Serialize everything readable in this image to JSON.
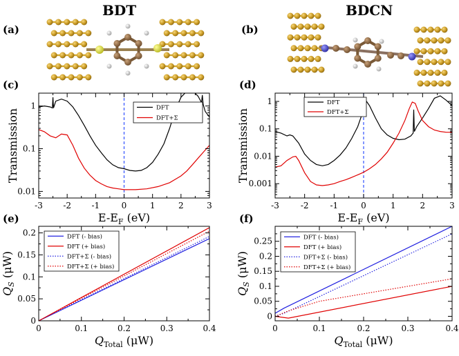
{
  "figure": {
    "panels": [
      {
        "label": "(a)",
        "title": "BDT",
        "type": "image"
      },
      {
        "label": "(b)",
        "title": "BDCN",
        "type": "image"
      }
    ]
  },
  "chart_data": [
    {
      "id": "c",
      "label": "(c)",
      "type": "line",
      "yscale": "log",
      "xlabel": "E-E",
      "xlabel_sub": "F",
      "xlabel_unit": " (eV)",
      "ylabel": "Transmission",
      "xlim": [
        -3,
        3
      ],
      "ylim": [
        0.007,
        2
      ],
      "xticks": [
        -3,
        -2,
        -1,
        0,
        1,
        2,
        3
      ],
      "yticks": [
        0.01,
        0.1,
        1
      ],
      "ytick_labels": [
        "0.01",
        "0.1",
        "1"
      ],
      "vline": 0,
      "legend": "top-right",
      "series": [
        {
          "name": "DFT",
          "color": "#000000",
          "x": [
            -3,
            -2.8,
            -2.6,
            -2.52,
            -2.5,
            -2.48,
            -2.4,
            -2.2,
            -2.0,
            -1.8,
            -1.6,
            -1.4,
            -1.2,
            -1.0,
            -0.8,
            -0.6,
            -0.4,
            -0.2,
            0,
            0.2,
            0.4,
            0.6,
            0.8,
            1.0,
            1.2,
            1.4,
            1.6,
            1.8,
            2.0,
            2.2,
            2.4,
            2.6,
            2.72,
            2.75,
            2.78,
            2.85,
            3.0
          ],
          "y": [
            0.95,
            1.0,
            0.95,
            0.9,
            1.6,
            0.9,
            1.3,
            1.45,
            1.3,
            0.95,
            0.6,
            0.35,
            0.2,
            0.12,
            0.08,
            0.055,
            0.042,
            0.036,
            0.034,
            0.031,
            0.03,
            0.031,
            0.036,
            0.048,
            0.075,
            0.13,
            0.3,
            0.8,
            1.6,
            2.2,
            2.3,
            1.7,
            1.2,
            1.8,
            1.1,
            0.75,
            0.55
          ]
        },
        {
          "name": "DFT+Σ",
          "color": "#e00000",
          "x": [
            -3,
            -2.8,
            -2.6,
            -2.4,
            -2.2,
            -2.0,
            -1.8,
            -1.6,
            -1.4,
            -1.2,
            -1.0,
            -0.8,
            -0.6,
            -0.4,
            -0.2,
            0,
            0.4,
            0.8,
            1.2,
            1.6,
            2.0,
            2.2,
            2.4,
            2.6,
            2.8,
            3.0
          ],
          "y": [
            0.28,
            0.25,
            0.2,
            0.18,
            0.22,
            0.21,
            0.12,
            0.06,
            0.035,
            0.024,
            0.018,
            0.015,
            0.013,
            0.012,
            0.0115,
            0.011,
            0.011,
            0.0115,
            0.013,
            0.016,
            0.023,
            0.03,
            0.042,
            0.06,
            0.085,
            0.12
          ]
        }
      ]
    },
    {
      "id": "d",
      "label": "(d)",
      "type": "line",
      "yscale": "log",
      "xlabel": "E-E",
      "xlabel_sub": "F",
      "xlabel_unit": " (eV)",
      "ylabel": "Transmission",
      "xlim": [
        -3,
        3
      ],
      "ylim": [
        0.0003,
        2
      ],
      "xticks": [
        -3,
        -2,
        -1,
        0,
        1,
        2,
        3
      ],
      "yticks": [
        0.001,
        0.01,
        0.1,
        1
      ],
      "ytick_labels": [
        "0.001",
        "0.01",
        "0.1",
        "1"
      ],
      "vline": 0,
      "legend": "top-left",
      "series": [
        {
          "name": "DFT",
          "color": "#000000",
          "x": [
            -3,
            -2.8,
            -2.6,
            -2.5,
            -2.4,
            -2.2,
            -2.0,
            -1.8,
            -1.6,
            -1.4,
            -1.2,
            -1.0,
            -0.8,
            -0.6,
            -0.4,
            -0.2,
            0,
            0.1,
            0.2,
            0.4,
            0.6,
            0.8,
            1.0,
            1.2,
            1.4,
            1.6,
            1.68,
            1.7,
            1.72,
            1.8,
            2.0,
            2.2,
            2.4,
            2.6,
            2.8,
            3.0
          ],
          "y": [
            0.08,
            0.07,
            0.055,
            0.06,
            0.055,
            0.03,
            0.012,
            0.007,
            0.005,
            0.0045,
            0.005,
            0.007,
            0.011,
            0.02,
            0.045,
            0.12,
            0.5,
            1.0,
            0.7,
            0.25,
            0.1,
            0.06,
            0.045,
            0.04,
            0.042,
            0.055,
            0.07,
            0.5,
            0.08,
            0.12,
            0.25,
            0.55,
            1.3,
            1.6,
            1.1,
            0.7
          ]
        },
        {
          "name": "DFT+Σ",
          "color": "#e00000",
          "x": [
            -3,
            -2.8,
            -2.6,
            -2.4,
            -2.3,
            -2.2,
            -2.0,
            -1.8,
            -1.6,
            -1.4,
            -1.2,
            -1.0,
            -0.8,
            -0.6,
            -0.4,
            -0.2,
            0,
            0.2,
            0.4,
            0.6,
            0.8,
            1.0,
            1.2,
            1.4,
            1.55,
            1.65,
            1.75,
            1.85,
            2.0,
            2.2,
            2.4,
            2.6,
            2.8,
            3.0
          ],
          "y": [
            0.004,
            0.0045,
            0.007,
            0.0095,
            0.01,
            0.007,
            0.0025,
            0.0012,
            0.0009,
            0.00085,
            0.0009,
            0.001,
            0.0012,
            0.0014,
            0.0017,
            0.0021,
            0.0026,
            0.0035,
            0.005,
            0.008,
            0.014,
            0.03,
            0.07,
            0.2,
            0.55,
            0.95,
            0.85,
            0.45,
            0.2,
            0.12,
            0.09,
            0.08,
            0.075,
            0.075
          ]
        }
      ]
    },
    {
      "id": "e",
      "label": "(e)",
      "type": "line",
      "yscale": "linear",
      "xlabel": "Q",
      "xlabel_sub": "Total",
      "xlabel_unit": " (μW)",
      "ylabel": "Q",
      "ylabel_sub": "S",
      "ylabel_unit": " (μW)",
      "xlim": [
        0,
        0.4
      ],
      "ylim": [
        0,
        0.215
      ],
      "xticks": [
        0,
        0.1,
        0.2,
        0.3,
        0.4
      ],
      "xtick_labels": [
        "0",
        "0.1",
        "0.2",
        "0.3",
        "0.4"
      ],
      "yticks": [
        0,
        0.05,
        0.1,
        0.15,
        0.2
      ],
      "ytick_labels": [
        "0",
        "0.05",
        "0.1",
        "0.15",
        "0.2"
      ],
      "legend": "top-left",
      "series": [
        {
          "name": "DFT (- bias)",
          "color": "#2020e0",
          "dash": "solid",
          "x": [
            0,
            0.4
          ],
          "y": [
            0,
            0.187
          ]
        },
        {
          "name": "DFT (+ bias)",
          "color": "#e00000",
          "dash": "solid",
          "x": [
            0,
            0.4
          ],
          "y": [
            0,
            0.212
          ]
        },
        {
          "name": "DFT+Σ (- bias)",
          "color": "#2020e0",
          "dash": "dotted",
          "x": [
            0,
            0.4
          ],
          "y": [
            0,
            0.192
          ]
        },
        {
          "name": "DFT+Σ (+ bias)",
          "color": "#e00000",
          "dash": "dotted",
          "x": [
            0,
            0.4
          ],
          "y": [
            0,
            0.204
          ]
        }
      ]
    },
    {
      "id": "f",
      "label": "(f)",
      "type": "line",
      "yscale": "linear",
      "xlabel": "Q",
      "xlabel_sub": "Total",
      "xlabel_unit": " (μW)",
      "ylabel": "Q",
      "ylabel_sub": "S",
      "ylabel_unit": " (μW)",
      "xlim": [
        0,
        0.4
      ],
      "ylim": [
        -0.015,
        0.3
      ],
      "xticks": [
        0,
        0.1,
        0.2,
        0.3,
        0.4
      ],
      "xtick_labels": [
        "0",
        "0.1",
        "0.2",
        "0.3",
        "0.4"
      ],
      "yticks": [
        0,
        0.05,
        0.1,
        0.15,
        0.2,
        0.25
      ],
      "ytick_labels": [
        "0",
        "0.05",
        "0.1",
        "0.15",
        "0.2",
        "0.25"
      ],
      "legend": "top-left",
      "series": [
        {
          "name": "DFT (- bias)",
          "color": "#2020e0",
          "dash": "solid",
          "x": [
            0,
            0.02,
            0.4
          ],
          "y": [
            0.01,
            0.027,
            0.3
          ]
        },
        {
          "name": "DFT (+ bias)",
          "color": "#e00000",
          "dash": "solid",
          "x": [
            0,
            0.03,
            0.4
          ],
          "y": [
            0.0,
            -0.006,
            0.1
          ]
        },
        {
          "name": "DFT+Σ (- bias)",
          "color": "#2020e0",
          "dash": "dotted",
          "x": [
            0,
            0.02,
            0.4
          ],
          "y": [
            0.0,
            0.01,
            0.275
          ]
        },
        {
          "name": "DFT+Σ (+ bias)",
          "color": "#e00000",
          "dash": "dotted",
          "x": [
            0,
            0.03,
            0.1,
            0.4
          ],
          "y": [
            0.0,
            0.018,
            0.05,
            0.125
          ]
        }
      ]
    }
  ]
}
